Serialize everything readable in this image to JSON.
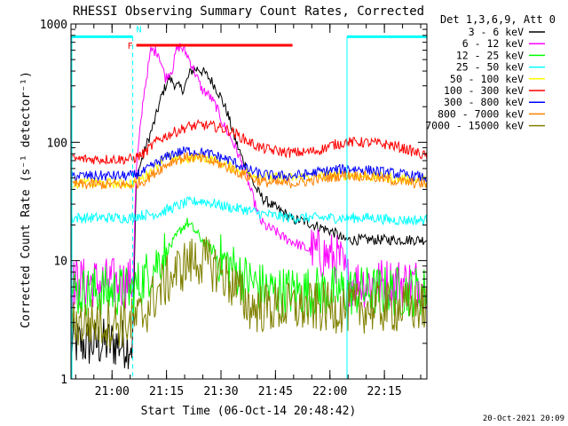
{
  "chart_data": {
    "type": "line",
    "title": "RHESSI Observing Summary Count Rates, Corrected",
    "xlabel": "Start Time (06-Oct-14 20:48:42)",
    "ylabel": "Corrected Count Rate (s⁻¹ detector⁻¹)",
    "yscale": "log",
    "ylim": [
      1,
      1000
    ],
    "xlim_min_after_start": [
      0,
      98
    ],
    "x_ticks": [
      {
        "label": "21:00",
        "min": 11.3
      },
      {
        "label": "21:15",
        "min": 26.3
      },
      {
        "label": "21:30",
        "min": 41.3
      },
      {
        "label": "21:45",
        "min": 56.3
      },
      {
        "label": "22:00",
        "min": 71.3
      },
      {
        "label": "22:15",
        "min": 86.3
      }
    ],
    "y_ticks": [
      {
        "label": "1",
        "value": 1
      },
      {
        "label": "10",
        "value": 10
      },
      {
        "label": "100",
        "value": 100
      },
      {
        "label": "1000",
        "value": 1000
      }
    ],
    "legend_title": "Det 1,3,6,9, Att 0",
    "legend_position": "right",
    "flags": [
      {
        "name": "N",
        "color": "#00ffff",
        "segments": [
          [
            0,
            17
          ],
          [
            76,
            98
          ]
        ],
        "level": 780
      },
      {
        "name": "F",
        "color": "#ff0000",
        "segments": [
          [
            18,
            61
          ]
        ],
        "level": 660
      }
    ],
    "data_gaps_min": [
      [
        17.5,
        76
      ]
    ],
    "series": [
      {
        "name": "3 - 6 keV",
        "color": "#000000",
        "x": [
          0,
          17,
          18,
          20,
          23,
          25,
          27,
          29,
          31,
          33,
          35,
          37,
          39,
          41,
          43,
          45,
          47,
          49,
          51,
          53,
          55,
          57,
          59,
          61,
          63,
          65,
          67,
          69,
          71,
          73,
          75
        ],
        "y": [
          2,
          2,
          50,
          80,
          150,
          250,
          350,
          300,
          280,
          400,
          420,
          380,
          320,
          250,
          180,
          110,
          75,
          55,
          40,
          33,
          30,
          27,
          25,
          22,
          22,
          21,
          20,
          19,
          18,
          17,
          15
        ]
      },
      {
        "name": "6 - 12 keV",
        "color": "#ff00ff",
        "x": [
          0,
          17,
          18,
          20,
          22,
          24,
          26,
          28,
          29,
          30,
          32,
          34,
          36,
          38,
          40,
          42,
          44,
          46,
          48,
          50,
          52,
          54,
          56,
          58,
          60,
          62,
          64,
          66,
          68,
          70,
          72,
          74,
          76,
          78,
          98
        ],
        "y": [
          6.5,
          6.5,
          60,
          250,
          600,
          580,
          350,
          420,
          600,
          650,
          550,
          400,
          280,
          250,
          200,
          140,
          110,
          80,
          55,
          35,
          22,
          19,
          18,
          16,
          15,
          14,
          13,
          12,
          11.5,
          11,
          10.5,
          10,
          7,
          6.5,
          6.5
        ]
      },
      {
        "name": "12 - 25 keV",
        "color": "#00ff00",
        "x": [
          0,
          17,
          18,
          20,
          24,
          28,
          30,
          32,
          34,
          36,
          38,
          40,
          44,
          48,
          52,
          56,
          60,
          64,
          68,
          72,
          76,
          80,
          84,
          88,
          92,
          96,
          98
        ],
        "y": [
          5.5,
          5.5,
          6,
          7,
          10,
          14,
          18,
          21,
          18,
          15,
          13,
          11,
          9,
          7,
          6,
          5.5,
          5.5,
          5.5,
          5.5,
          5.5,
          5.5,
          5.5,
          5.5,
          5.5,
          5.5,
          5.5,
          5.5
        ]
      },
      {
        "name": "25 - 50 keV",
        "color": "#00ffff",
        "x": [
          0,
          17,
          18,
          24,
          28,
          32,
          36,
          40,
          44,
          48,
          52,
          56,
          60,
          64,
          68,
          72,
          76,
          80,
          84,
          88,
          92,
          96,
          98
        ],
        "y": [
          23,
          23,
          24,
          25,
          28,
          31,
          32,
          30,
          28,
          27,
          25,
          24,
          23,
          23,
          23,
          23,
          23,
          23,
          23,
          22,
          22,
          22,
          22
        ]
      },
      {
        "name": "50 - 100 keV",
        "color": "#ffff00",
        "x": [
          0,
          17,
          18,
          20,
          24,
          26,
          28,
          32,
          36,
          40,
          44,
          48,
          52,
          56,
          60,
          64,
          68,
          72,
          76,
          80,
          84,
          88,
          92,
          96,
          98
        ],
        "y": [
          45,
          45,
          48,
          50,
          65,
          80,
          70,
          72,
          75,
          70,
          62,
          56,
          52,
          50,
          50,
          51,
          52,
          53,
          53,
          52,
          51,
          50,
          49,
          48,
          47
        ]
      },
      {
        "name": "100 - 300 keV",
        "color": "#ff0000",
        "x": [
          0,
          17,
          18,
          20,
          24,
          28,
          32,
          36,
          40,
          44,
          48,
          52,
          56,
          60,
          64,
          68,
          72,
          76,
          80,
          84,
          88,
          92,
          96,
          98
        ],
        "y": [
          72,
          72,
          75,
          80,
          105,
          120,
          135,
          140,
          135,
          125,
          105,
          90,
          85,
          82,
          82,
          85,
          95,
          100,
          100,
          98,
          95,
          88,
          80,
          76
        ]
      },
      {
        "name": "300 - 800 keV",
        "color": "#0000ff",
        "x": [
          0,
          17,
          18,
          20,
          24,
          28,
          32,
          36,
          40,
          44,
          48,
          52,
          56,
          60,
          64,
          68,
          72,
          76,
          80,
          84,
          88,
          92,
          96,
          98
        ],
        "y": [
          52,
          52,
          54,
          56,
          68,
          80,
          85,
          82,
          77,
          70,
          60,
          54,
          52,
          52,
          53,
          56,
          58,
          60,
          59,
          57,
          55,
          53,
          51,
          50
        ]
      },
      {
        "name": "800 - 7000 keV",
        "color": "#ff8000",
        "x": [
          0,
          17,
          18,
          20,
          24,
          28,
          32,
          36,
          40,
          44,
          48,
          52,
          56,
          60,
          64,
          68,
          72,
          76,
          80,
          84,
          88,
          92,
          96,
          98
        ],
        "y": [
          44,
          44,
          45,
          47,
          58,
          70,
          75,
          72,
          67,
          60,
          52,
          47,
          45,
          45,
          46,
          49,
          51,
          53,
          52,
          50,
          48,
          46,
          45,
          44
        ]
      },
      {
        "name": "7000 - 15000 keV",
        "color": "#808000",
        "x": [
          0,
          17,
          18,
          20,
          22,
          24,
          26,
          28,
          30,
          32,
          34,
          36,
          38,
          40,
          42,
          44,
          46,
          48,
          50,
          52,
          56,
          60,
          64,
          68,
          72,
          76,
          80,
          84,
          88,
          92,
          96,
          98
        ],
        "y": [
          3,
          3,
          3.2,
          3.5,
          4.5,
          5.5,
          6.5,
          7.5,
          8.5,
          9.5,
          10,
          10,
          9.5,
          8.5,
          7.5,
          6.5,
          5.5,
          4.5,
          4,
          4,
          4,
          4,
          4,
          4,
          4,
          4,
          4,
          4,
          4,
          4,
          4,
          4
        ]
      }
    ]
  },
  "footer": {
    "date": "20-Oct-2021 20:09"
  }
}
